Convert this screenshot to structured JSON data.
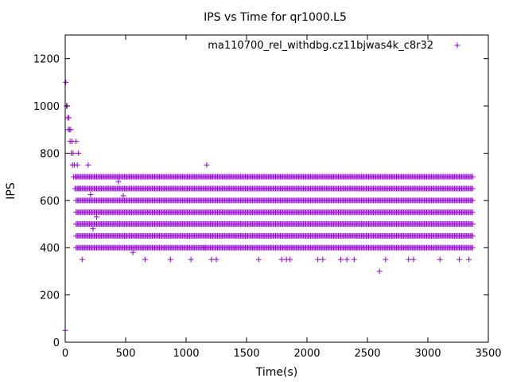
{
  "chart_data": {
    "type": "scatter",
    "title": "IPS vs Time for qr1000.L5",
    "xlabel": "Time(s)",
    "ylabel": "IPS",
    "xlim": [
      0,
      3500
    ],
    "ylim": [
      0,
      1300
    ],
    "xticks": [
      0,
      500,
      1000,
      1500,
      2000,
      2500,
      3000,
      3500
    ],
    "yticks": [
      0,
      200,
      400,
      600,
      800,
      1000,
      1200
    ],
    "grid": false,
    "legend": {
      "placement": "top-right"
    },
    "series": [
      {
        "name": "ma110700_rel_withdbg.cz11bjwas4k_c8r32",
        "color": "#9400d3",
        "marker": "plus",
        "band_levels": [
          400,
          450,
          500,
          550,
          600,
          650,
          700
        ],
        "band_x_range": [
          90,
          3370
        ],
        "band_step": 10,
        "extra_points": [
          [
            0,
            50
          ],
          [
            5,
            1100
          ],
          [
            10,
            1000
          ],
          [
            15,
            1000
          ],
          [
            20,
            950
          ],
          [
            25,
            900
          ],
          [
            30,
            950
          ],
          [
            35,
            900
          ],
          [
            40,
            850
          ],
          [
            45,
            900
          ],
          [
            50,
            800
          ],
          [
            55,
            850
          ],
          [
            60,
            750
          ],
          [
            65,
            800
          ],
          [
            70,
            700
          ],
          [
            75,
            750
          ],
          [
            80,
            650
          ],
          [
            85,
            700
          ],
          [
            90,
            850
          ],
          [
            100,
            750
          ],
          [
            110,
            800
          ],
          [
            120,
            650
          ],
          [
            140,
            350
          ],
          [
            190,
            750
          ],
          [
            210,
            625
          ],
          [
            230,
            480
          ],
          [
            260,
            530
          ],
          [
            440,
            680
          ],
          [
            480,
            620
          ],
          [
            560,
            380
          ],
          [
            660,
            350
          ],
          [
            870,
            350
          ],
          [
            1040,
            350
          ],
          [
            1150,
            400
          ],
          [
            1170,
            750
          ],
          [
            1210,
            350
          ],
          [
            1250,
            350
          ],
          [
            1600,
            350
          ],
          [
            1790,
            350
          ],
          [
            1830,
            350
          ],
          [
            1860,
            350
          ],
          [
            2090,
            350
          ],
          [
            2130,
            350
          ],
          [
            2280,
            350
          ],
          [
            2330,
            350
          ],
          [
            2390,
            350
          ],
          [
            2600,
            300
          ],
          [
            2650,
            350
          ],
          [
            2840,
            350
          ],
          [
            2880,
            350
          ],
          [
            3100,
            350
          ],
          [
            3260,
            350
          ],
          [
            3340,
            350
          ]
        ]
      }
    ]
  }
}
